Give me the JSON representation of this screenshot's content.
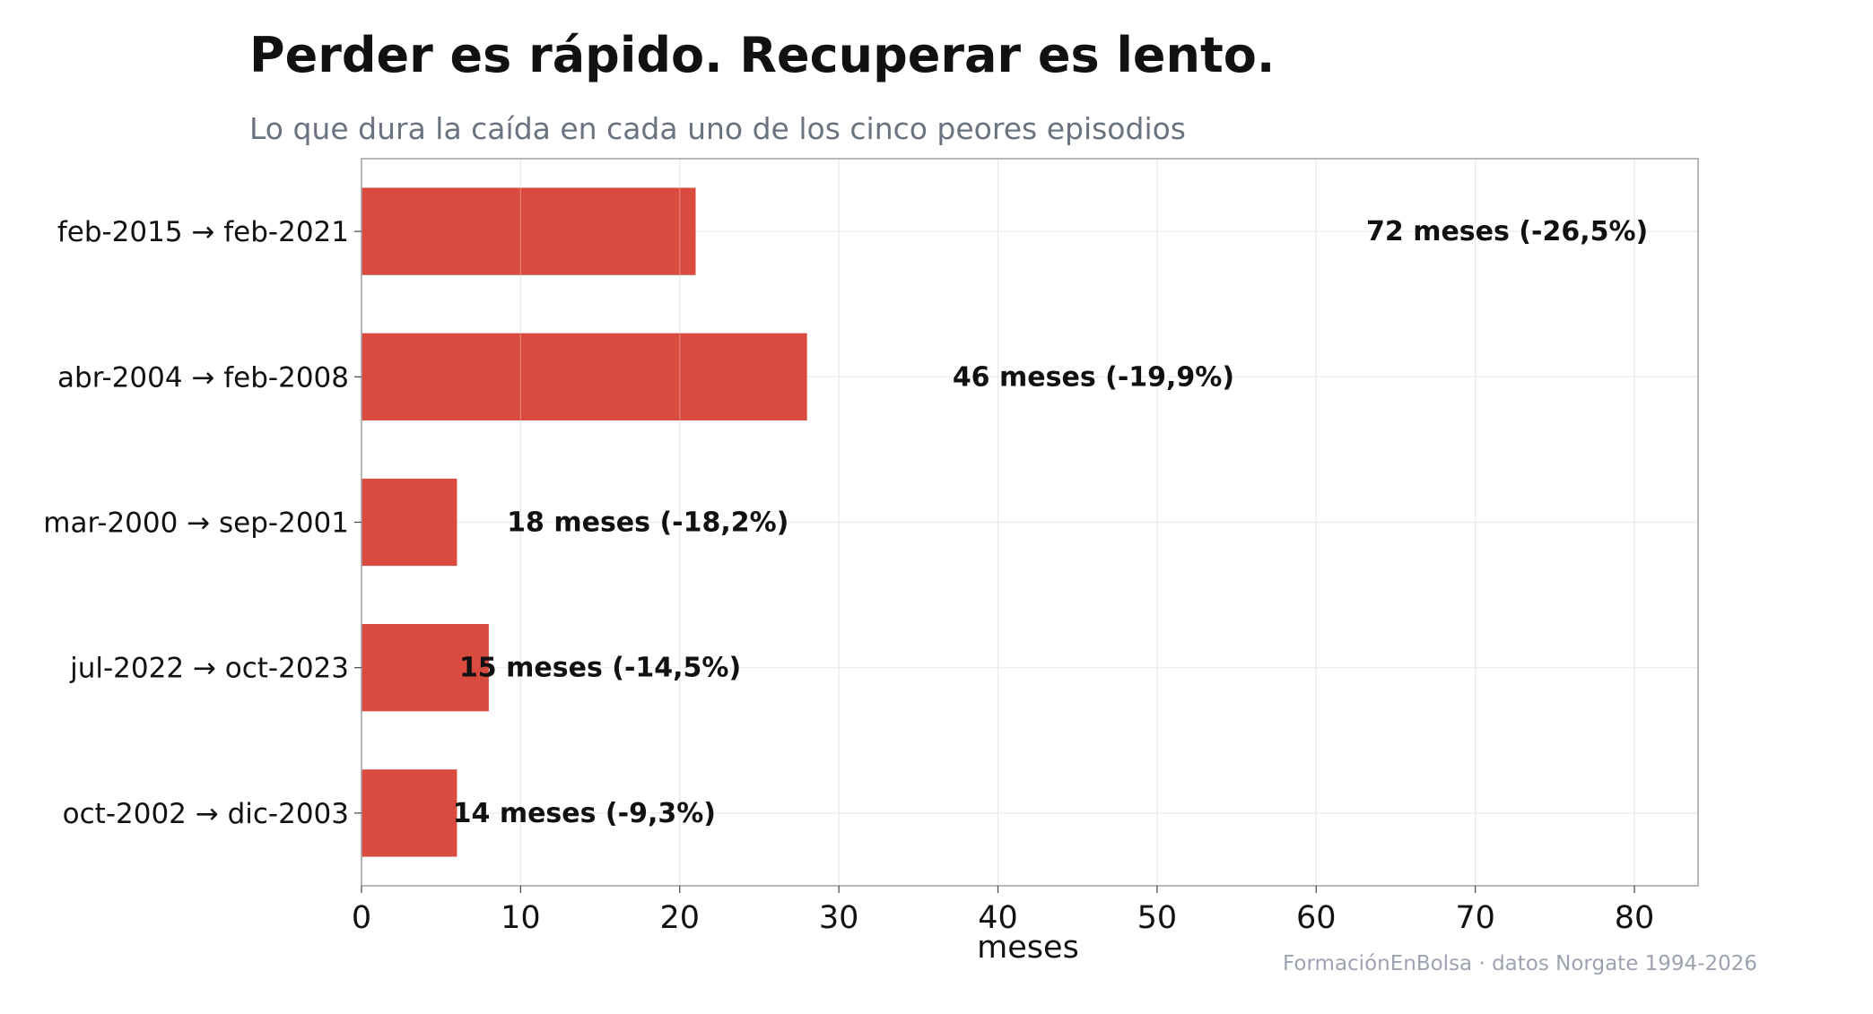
{
  "title": "Perder es rápido. Recuperar es lento.",
  "subtitle": "Lo que dura la caída en cada uno de los cinco peores episodios",
  "footnote": "FormaciónEnBolsa · datos Norgate 1994-2026",
  "chart_data": {
    "type": "bar",
    "orientation": "horizontal",
    "categories": [
      "feb-2015 → feb-2021",
      "abr-2004 → feb-2008",
      "mar-2000 → sep-2001",
      "jul-2022 → oct-2023",
      "oct-2002 → dic-2003"
    ],
    "values": [
      21,
      28,
      6,
      8,
      6
    ],
    "annotations": [
      {
        "text": "72 meses  (-26,5%)",
        "x": 72
      },
      {
        "text": "46 meses  (-19,9%)",
        "x": 46
      },
      {
        "text": "18 meses  (-18,2%)",
        "x": 18
      },
      {
        "text": "15 meses  (-14,5%)",
        "x": 15
      },
      {
        "text": "14 meses  (-9,3%)",
        "x": 14
      }
    ],
    "xlabel": "meses",
    "ylabel": "",
    "xlim": [
      0,
      84
    ],
    "xticks": [
      0,
      10,
      20,
      30,
      40,
      50,
      60,
      70,
      80
    ],
    "grid": true,
    "bar_color": "#d94b3f"
  }
}
